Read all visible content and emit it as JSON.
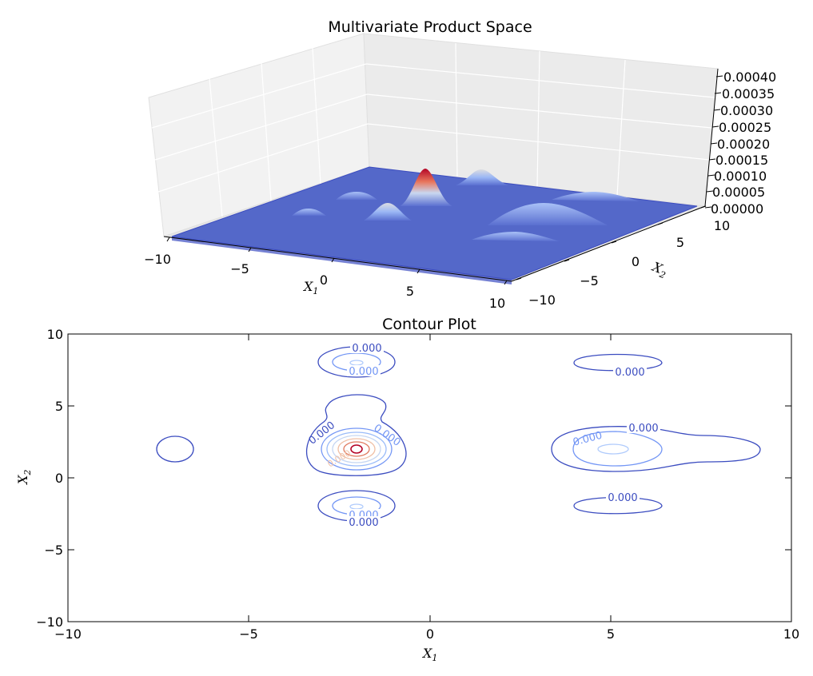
{
  "chart_data": [
    {
      "type": "surface",
      "title": "Multivariate Product Space",
      "xlabel": "X",
      "xlabel_sub": "1",
      "ylabel": "X",
      "ylabel_sub": "2",
      "xlim": [
        -10,
        10
      ],
      "ylim": [
        -10,
        10
      ],
      "zlim": [
        0,
        0.0004
      ],
      "x_ticks": [
        "−10",
        "−5",
        "0",
        "5",
        "10"
      ],
      "y_ticks": [
        "−10",
        "−5",
        "0",
        "5",
        "10"
      ],
      "z_ticks": [
        "0.00000",
        "0.00005",
        "0.00010",
        "0.00015",
        "0.00020",
        "0.00025",
        "0.00030",
        "0.00035",
        "0.00040"
      ],
      "colormap": [
        "#3b4cc0",
        "#7396f5",
        "#b0cbfc",
        "#dddcdc",
        "#f6a385",
        "#d75445",
        "#b40426"
      ],
      "peaks": [
        {
          "x": -2,
          "y": 2,
          "height": 0.00038
        },
        {
          "x": -2,
          "y": 8,
          "height": 0.00015
        },
        {
          "x": -2,
          "y": -2,
          "height": 0.00015
        },
        {
          "x": 5,
          "y": 2,
          "height": 0.00011
        },
        {
          "x": 5,
          "y": 8,
          "height": 4e-05
        },
        {
          "x": 5,
          "y": -2,
          "height": 4e-05
        },
        {
          "x": -7,
          "y": 2,
          "height": 4e-05
        }
      ]
    },
    {
      "type": "contour",
      "title": "Contour Plot",
      "xlabel": "X",
      "xlabel_sub": "1",
      "ylabel": "X",
      "ylabel_sub": "2",
      "xlim": [
        -10,
        10
      ],
      "ylim": [
        -10,
        10
      ],
      "x_ticks": [
        "−10",
        "−5",
        "0",
        "5",
        "10"
      ],
      "y_ticks": [
        "10",
        "5",
        "0",
        "−5",
        "−10"
      ],
      "level_label": "0.000",
      "grid": false
    }
  ]
}
